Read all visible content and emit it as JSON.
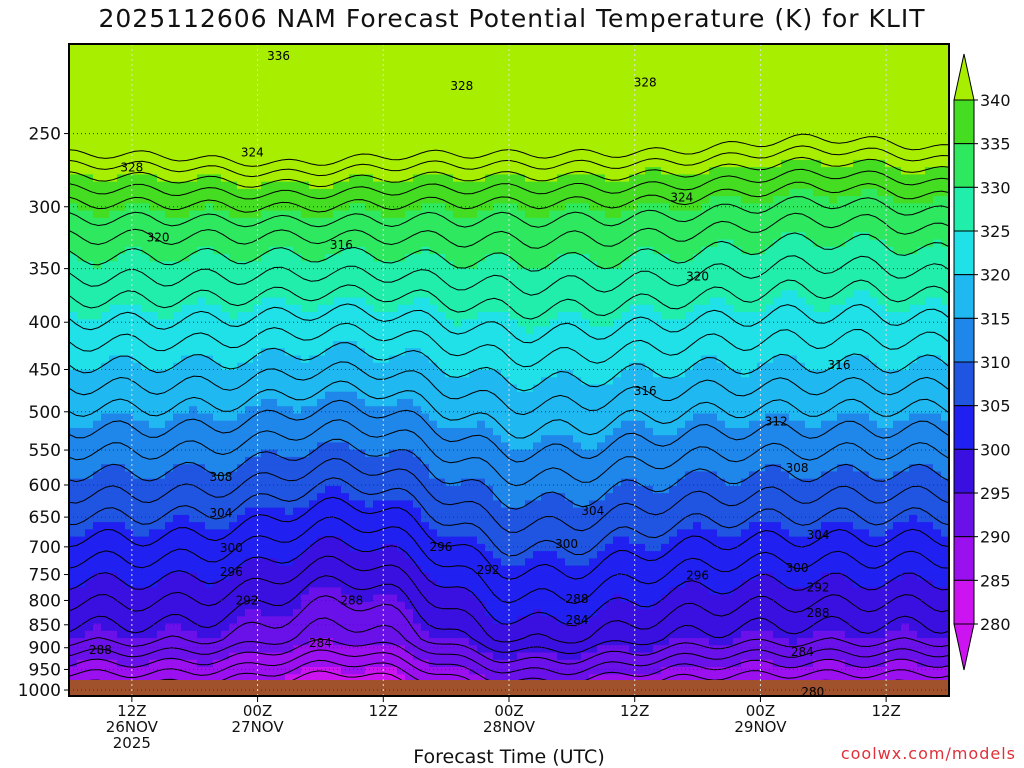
{
  "title": "2025112606 NAM Forecast Potential Temperature (K) for KLIT",
  "x_axis_title": "Forecast Time (UTC)",
  "watermark": "coolwx.com/models",
  "chart_data": {
    "type": "heatmap",
    "title": "2025112606 NAM Forecast Potential Temperature (K) for KLIT",
    "xlabel": "Forecast Time (UTC)",
    "ylabel": "",
    "x_ticks": [
      {
        "lines": [
          "12Z",
          "26NOV",
          "2025"
        ],
        "hour": 6
      },
      {
        "lines": [
          "00Z",
          "27NOV"
        ],
        "hour": 18
      },
      {
        "lines": [
          "12Z"
        ],
        "hour": 30
      },
      {
        "lines": [
          "00Z",
          "28NOV"
        ],
        "hour": 42
      },
      {
        "lines": [
          "12Z"
        ],
        "hour": 54
      },
      {
        "lines": [
          "00Z",
          "29NOV"
        ],
        "hour": 66
      },
      {
        "lines": [
          "12Z"
        ],
        "hour": 78
      }
    ],
    "x_range_hours": [
      0,
      84
    ],
    "y_ticks_hpa": [
      250,
      300,
      350,
      400,
      450,
      500,
      550,
      600,
      650,
      700,
      750,
      800,
      850,
      900,
      950,
      1000
    ],
    "y_range_hpa": [
      200,
      1015
    ],
    "y_scale": "log-pressure",
    "colorbar": {
      "levels": [
        340,
        335,
        330,
        325,
        320,
        315,
        310,
        305,
        300,
        295,
        290,
        285,
        280
      ],
      "colors": [
        "#a8ee00",
        "#44dd22",
        "#2ee860",
        "#20eeaa",
        "#20e0e8",
        "#20b8f0",
        "#1f86ea",
        "#1f55e0",
        "#2020f0",
        "#3a10e0",
        "#6a10e8",
        "#9a10ee",
        "#cc14f0"
      ]
    },
    "contour_labels": [
      {
        "value": "336",
        "hour": 20.0,
        "hpa": 206
      },
      {
        "value": "328",
        "hour": 37.5,
        "hpa": 222
      },
      {
        "value": "328",
        "hour": 55.0,
        "hpa": 220
      },
      {
        "value": "328",
        "hour": 6.0,
        "hpa": 272
      },
      {
        "value": "324",
        "hour": 17.5,
        "hpa": 262
      },
      {
        "value": "324",
        "hour": 58.5,
        "hpa": 293
      },
      {
        "value": "320",
        "hour": 8.5,
        "hpa": 324
      },
      {
        "value": "316",
        "hour": 26.0,
        "hpa": 330
      },
      {
        "value": "320",
        "hour": 60.0,
        "hpa": 357
      },
      {
        "value": "316",
        "hour": 55.0,
        "hpa": 475
      },
      {
        "value": "316",
        "hour": 73.5,
        "hpa": 445
      },
      {
        "value": "312",
        "hour": 67.5,
        "hpa": 512
      },
      {
        "value": "308",
        "hour": 14.5,
        "hpa": 588
      },
      {
        "value": "308",
        "hour": 69.5,
        "hpa": 575
      },
      {
        "value": "304",
        "hour": 14.5,
        "hpa": 643
      },
      {
        "value": "304",
        "hour": 50.0,
        "hpa": 640
      },
      {
        "value": "304",
        "hour": 71.5,
        "hpa": 680
      },
      {
        "value": "300",
        "hour": 15.5,
        "hpa": 702
      },
      {
        "value": "300",
        "hour": 47.5,
        "hpa": 695
      },
      {
        "value": "300",
        "hour": 69.5,
        "hpa": 738
      },
      {
        "value": "296",
        "hour": 15.5,
        "hpa": 745
      },
      {
        "value": "296",
        "hour": 35.5,
        "hpa": 700
      },
      {
        "value": "292",
        "hour": 17.0,
        "hpa": 800
      },
      {
        "value": "292",
        "hour": 40.0,
        "hpa": 742
      },
      {
        "value": "296",
        "hour": 60.0,
        "hpa": 752
      },
      {
        "value": "292",
        "hour": 71.5,
        "hpa": 775
      },
      {
        "value": "288",
        "hour": 27.0,
        "hpa": 800
      },
      {
        "value": "288",
        "hour": 48.5,
        "hpa": 797
      },
      {
        "value": "288",
        "hour": 71.5,
        "hpa": 825
      },
      {
        "value": "284",
        "hour": 48.5,
        "hpa": 840
      },
      {
        "value": "284",
        "hour": 24.0,
        "hpa": 890
      },
      {
        "value": "288",
        "hour": 3.0,
        "hpa": 905
      },
      {
        "value": "284",
        "hour": 70.0,
        "hpa": 910
      },
      {
        "value": "280",
        "hour": 71.0,
        "hpa": 1005
      }
    ],
    "surface_layer_color": "#a0522d",
    "grid": "dotted"
  }
}
